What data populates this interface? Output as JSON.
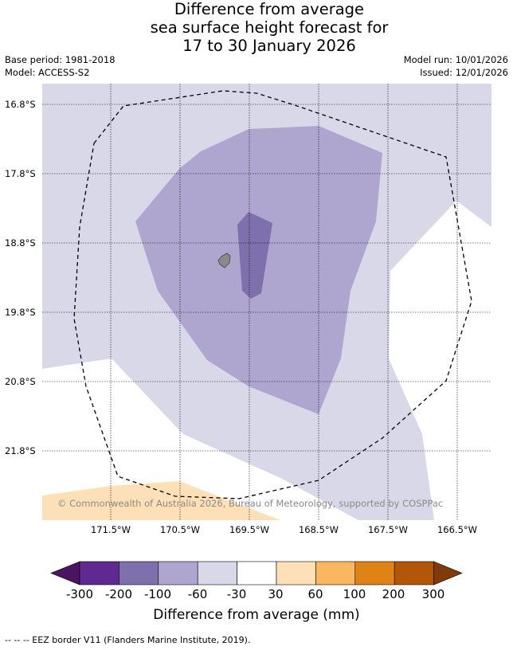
{
  "title": {
    "line1": "Difference from average",
    "line2": "sea surface height forecast for",
    "line3": "17 to 30 January 2026"
  },
  "meta": {
    "base_period": "Base period: 1981-2018",
    "model": "Model: ACCESS-S2",
    "model_run": "Model run: 10/01/2026",
    "issued": "Issued: 12/01/2026"
  },
  "map": {
    "lat_labels": [
      "16.8°S",
      "17.8°S",
      "18.8°S",
      "19.8°S",
      "20.8°S",
      "21.8°S"
    ],
    "lon_labels": [
      "171.5°W",
      "170.5°W",
      "169.5°W",
      "168.5°W",
      "167.5°W",
      "166.5°W"
    ],
    "copyright": "© Commonwealth of Australia 2026, Bureau of Meteorology, supported by COSPPac",
    "colors": {
      "band_minus60_minus30": "#d8d8e8",
      "band_minus100_minus60": "#aea6cf",
      "band_minus200_minus100": "#7e6fad",
      "band_30_60": "#fde0b6",
      "island": "#8a8a8a",
      "eez": "#000000"
    }
  },
  "colorbar": {
    "ticks": [
      "-300",
      "-200",
      "-100",
      "-60",
      "-30",
      "30",
      "60",
      "100",
      "200",
      "300"
    ],
    "colors": [
      "#4a1460",
      "#5e2a91",
      "#7e6fad",
      "#aea6cf",
      "#d8d8e8",
      "#ffffff",
      "#fde0b6",
      "#fbb75f",
      "#e08315",
      "#b25708",
      "#7f3b08"
    ],
    "label": "Difference from average (mm)"
  },
  "footnote": "--  --  -- EEZ border V11 (Flanders Marine Institute, 2019)."
}
